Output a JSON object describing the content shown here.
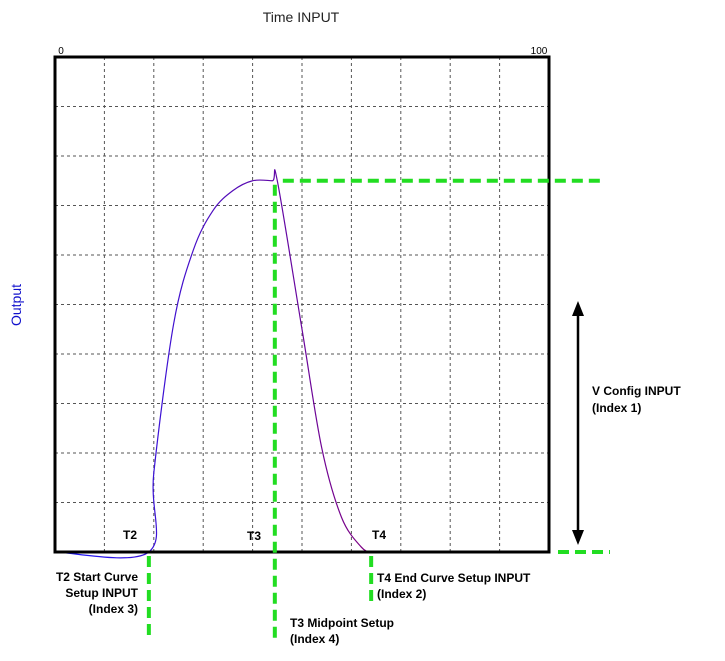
{
  "title": "Time INPUT",
  "y_axis_label": "Output",
  "x_tick_start": "0",
  "x_tick_end": "100",
  "markers": {
    "t2": "T2",
    "t3": "T3",
    "t4": "T4"
  },
  "annotations": {
    "t2_line1": "T2 Start Curve",
    "t2_line2": "Setup INPUT",
    "t2_line3": "(Index 3)",
    "t3_line1": "T3 Midpoint Setup",
    "t3_line2": "(Index 4)",
    "t4_line1": "T4 End Curve Setup INPUT",
    "t4_line2": "(Index 2)",
    "v_line1": "V Config INPUT",
    "v_line2": "(Index 1)"
  },
  "colors": {
    "curve_start": "#1a1aff",
    "curve_end": "#800080",
    "guide": "#22dd22",
    "baseline": "#9acd32",
    "axis_label": "#1010cc"
  },
  "chart_data": {
    "type": "line",
    "x_range": [
      0,
      100
    ],
    "y_range": [
      0,
      100
    ],
    "grid": true,
    "x_grid_divisions": 10,
    "y_grid_divisions": 10,
    "series": [
      {
        "values_x": [
          0,
          19,
          20,
          24,
          28,
          32,
          36,
          40,
          44,
          45,
          50,
          54,
          58,
          62,
          64
        ],
        "values_y": [
          0,
          0,
          16,
          46,
          61,
          69,
          73,
          75,
          75,
          75,
          45,
          21,
          7,
          1,
          0
        ]
      }
    ],
    "guides": {
      "t2": 19,
      "t3": 44.5,
      "t4": 64,
      "v": 75
    }
  }
}
